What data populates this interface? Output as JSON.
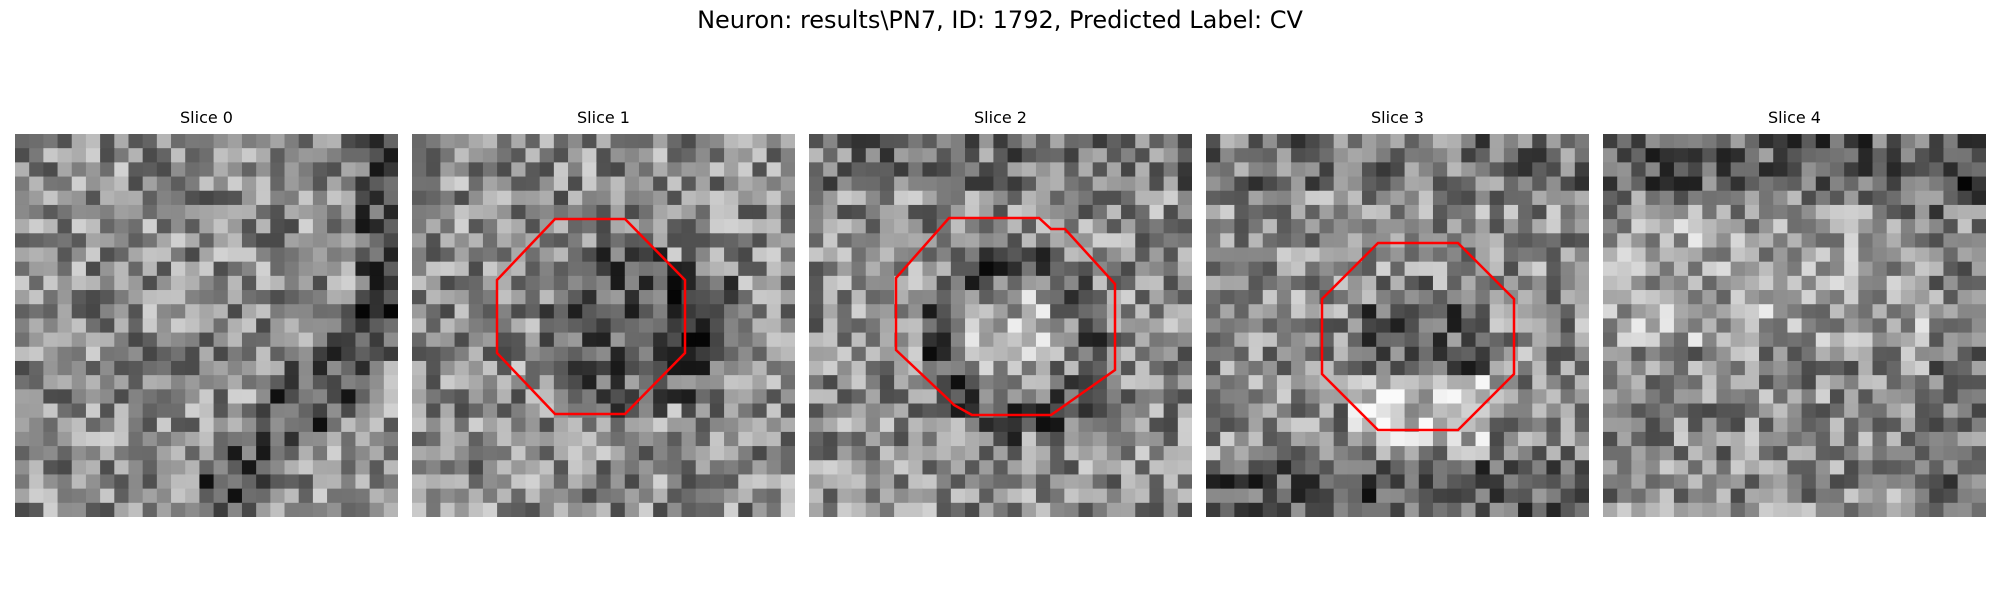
{
  "figure": {
    "title": "Neuron: results\\PN7, ID: 1792, Predicted Label: CV"
  },
  "panels": [
    {
      "title": "Slice 0",
      "seed": 11,
      "outline": null
    },
    {
      "title": "Slice 1",
      "seed": 23,
      "outline": "octagon"
    },
    {
      "title": "Slice 2",
      "seed": 37,
      "outline": "octagon-irregular"
    },
    {
      "title": "Slice 3",
      "seed": 41,
      "outline": "octagon"
    },
    {
      "title": "Slice 4",
      "seed": 59,
      "outline": null
    }
  ],
  "colors": {
    "outline": "#ff0000",
    "background": "#ffffff"
  }
}
